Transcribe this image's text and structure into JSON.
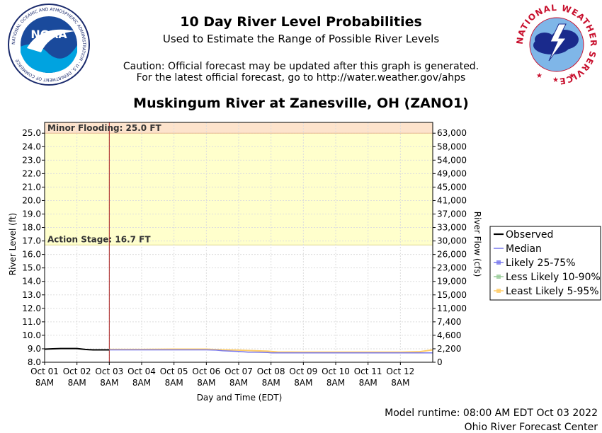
{
  "header": {
    "title": "10 Day River Level Probabilities",
    "subtitle": "Used to Estimate the Range of Possible River Levels",
    "caution_line1": "Caution: Official forecast may be updated after this graph is generated.",
    "caution_line2": "For the latest official forecast, go to http://water.weather.gov/ahps",
    "station": "Muskingum River at Zanesville, OH (ZANO1)"
  },
  "logos": {
    "noaa_text": "NOAA",
    "noaa_ring": "NATIONAL OCEANIC AND ATMOSPHERIC ADMINISTRATION · U.S. DEPARTMENT OF COMMERCE",
    "nws_ring": "NATIONAL WEATHER SERVICE"
  },
  "footer": {
    "runtime": "Model runtime: 08:00 AM EDT Oct 03 2022",
    "center": "Ohio River Forecast Center"
  },
  "chart_data": {
    "type": "line",
    "xlabel": "Day and Time (EDT)",
    "ylabel": "River Level (ft)",
    "y2label": "River Flow (cfs)",
    "ylim": [
      8.0,
      25.8
    ],
    "xlim_days": [
      0,
      12
    ],
    "x_ticks": [
      {
        "day": "Oct 01",
        "time": "8AM"
      },
      {
        "day": "Oct 02",
        "time": "8AM"
      },
      {
        "day": "Oct 03",
        "time": "8AM"
      },
      {
        "day": "Oct 04",
        "time": "8AM"
      },
      {
        "day": "Oct 05",
        "time": "8AM"
      },
      {
        "day": "Oct 06",
        "time": "8AM"
      },
      {
        "day": "Oct 07",
        "time": "8AM"
      },
      {
        "day": "Oct 08",
        "time": "8AM"
      },
      {
        "day": "Oct 09",
        "time": "8AM"
      },
      {
        "day": "Oct 10",
        "time": "8AM"
      },
      {
        "day": "Oct 11",
        "time": "8AM"
      },
      {
        "day": "Oct 12",
        "time": "8AM"
      }
    ],
    "y_ticks": [
      "8.0",
      "9.0",
      "10.0",
      "11.0",
      "12.0",
      "13.0",
      "14.0",
      "15.0",
      "16.0",
      "17.0",
      "18.0",
      "19.0",
      "20.0",
      "21.0",
      "22.0",
      "23.0",
      "24.0",
      "25.0"
    ],
    "y2_ticks": [
      {
        "stage": 8.0,
        "label": "0"
      },
      {
        "stage": 9.0,
        "label": "2,200"
      },
      {
        "stage": 10.0,
        "label": "4,600"
      },
      {
        "stage": 11.0,
        "label": "7,400"
      },
      {
        "stage": 12.0,
        "label": "11,000"
      },
      {
        "stage": 13.0,
        "label": "15,000"
      },
      {
        "stage": 14.0,
        "label": "19,000"
      },
      {
        "stage": 15.0,
        "label": "23,000"
      },
      {
        "stage": 16.0,
        "label": "26,000"
      },
      {
        "stage": 17.0,
        "label": "30,000"
      },
      {
        "stage": 18.0,
        "label": "33,000"
      },
      {
        "stage": 19.0,
        "label": "37,000"
      },
      {
        "stage": 20.0,
        "label": "41,000"
      },
      {
        "stage": 21.0,
        "label": "45,000"
      },
      {
        "stage": 22.0,
        "label": "49,000"
      },
      {
        "stage": 23.0,
        "label": "54,000"
      },
      {
        "stage": 24.0,
        "label": "58,000"
      },
      {
        "stage": 25.0,
        "label": "63,000"
      }
    ],
    "thresholds": [
      {
        "label": "Minor Flooding: 25.0 FT",
        "value": 25.0,
        "color": "#fde3cc"
      },
      {
        "label": "Action Stage: 16.7 FT",
        "value": 16.7,
        "color": "#ffffcc"
      }
    ],
    "forecast_start_day": 2,
    "legend": {
      "placement": "right",
      "entries": [
        {
          "name": "Observed",
          "color": "#000000",
          "marker": false
        },
        {
          "name": "Median",
          "color": "#7777ee",
          "marker": false
        },
        {
          "name": "Likely 25-75%",
          "color": "#7777ee",
          "marker": true
        },
        {
          "name": "Less Likely 10-90%",
          "color": "#99cc99",
          "marker": true
        },
        {
          "name": "Least Likely 5-95%",
          "color": "#ffcc66",
          "marker": true
        }
      ]
    },
    "series": [
      {
        "name": "Observed",
        "color": "#000000",
        "x": [
          0,
          0.25,
          0.5,
          1.0,
          1.25,
          1.5,
          2.0
        ],
        "y": [
          8.97,
          9.0,
          9.02,
          9.02,
          8.95,
          8.92,
          8.92
        ]
      },
      {
        "name": "Median",
        "color": "#7777ee",
        "x": [
          2,
          3,
          4,
          4.5,
          5,
          5.3,
          5.5,
          6,
          6.3,
          6.5,
          6.9,
          7,
          8,
          9,
          10,
          11,
          11.7,
          12
        ],
        "y": [
          8.92,
          8.92,
          8.92,
          8.92,
          8.92,
          8.9,
          8.85,
          8.8,
          8.75,
          8.75,
          8.72,
          8.7,
          8.7,
          8.7,
          8.7,
          8.7,
          8.7,
          8.7
        ]
      },
      {
        "name": "Least Likely 5-95%",
        "color": "#ffcc66",
        "x": [
          2,
          3,
          4,
          5,
          5.5,
          6,
          6.5,
          6.9,
          7.2,
          8,
          9,
          10,
          11,
          11.6,
          12
        ],
        "y": [
          8.95,
          8.95,
          8.97,
          8.97,
          8.92,
          8.9,
          8.85,
          8.82,
          8.76,
          8.75,
          8.75,
          8.75,
          8.75,
          8.78,
          8.92
        ]
      }
    ]
  }
}
